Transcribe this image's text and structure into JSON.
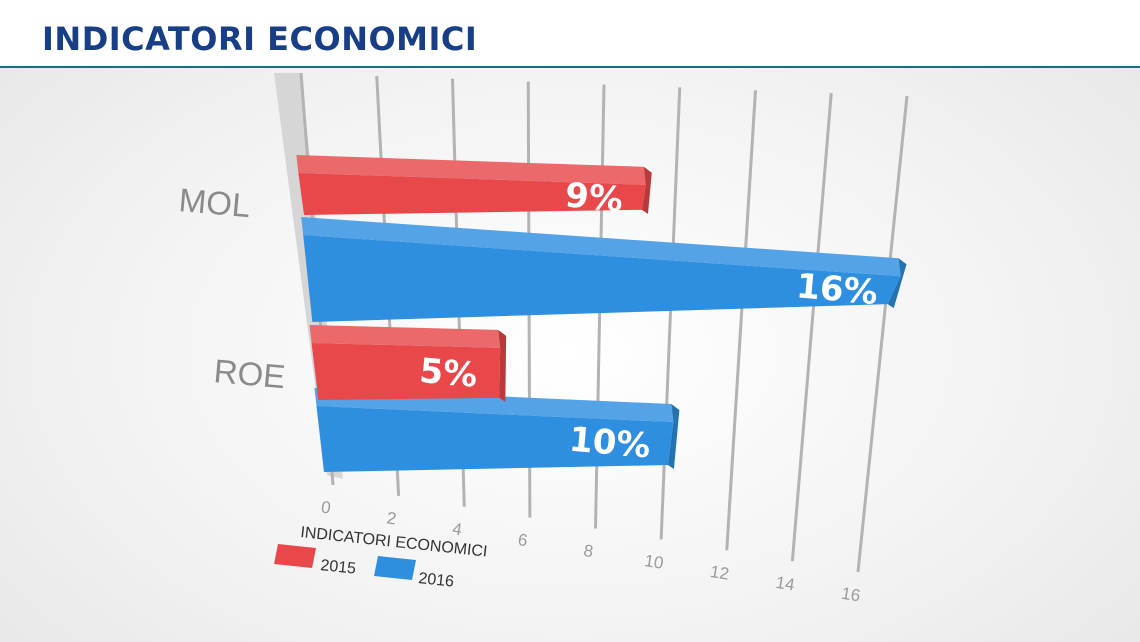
{
  "header": {
    "title": "INDICATORI ECONOMICI"
  },
  "chart_data": {
    "type": "bar",
    "orientation": "horizontal",
    "categories": [
      "MOL",
      "ROE"
    ],
    "series": [
      {
        "name": "2015",
        "values": [
          9,
          5
        ],
        "labels": [
          "9%",
          "5%"
        ],
        "color": "#e8484a"
      },
      {
        "name": "2016",
        "values": [
          16,
          10
        ],
        "labels": [
          "16%",
          "10%"
        ],
        "color": "#2e8fe0"
      }
    ],
    "x_ticks": [
      0,
      2,
      4,
      6,
      8,
      10,
      12,
      14,
      16
    ],
    "xlim": [
      0,
      16
    ],
    "legend": {
      "title": "INDICATORI ECONOMICI",
      "placement": "bottom-left"
    },
    "grid": true
  }
}
